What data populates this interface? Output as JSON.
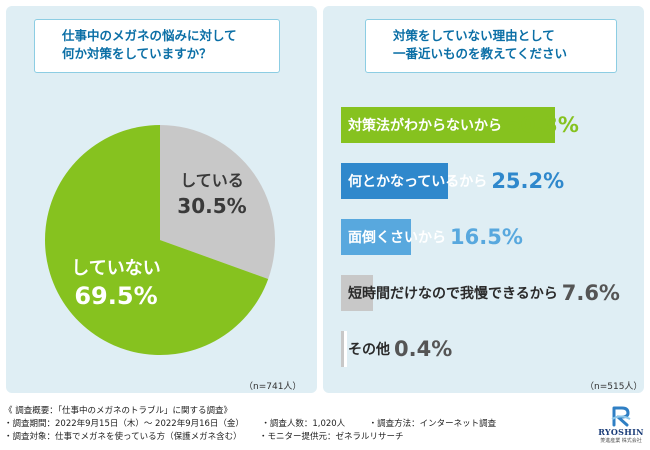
{
  "left_question": "仕事中のメガネの悩みに対して\n何か対策をしていますか？",
  "right_question": "対策をしていない理由として\n一番近いものを教えてください",
  "left_n": "（n=741人）",
  "right_n": "（n=515人）",
  "colors": {
    "green": "#86c21f",
    "gray": "#c8c8c8",
    "blue_dark": "#2f88cc",
    "blue_light": "#58a8de",
    "panel": "#dfeef4"
  },
  "chart_data": [
    {
      "type": "pie",
      "title": "",
      "slices": [
        {
          "label": "している",
          "value": 30.5,
          "value_text": "30.5%"
        },
        {
          "label": "していない",
          "value": 69.5,
          "value_text": "69.5%"
        }
      ]
    },
    {
      "type": "bar",
      "orientation": "horizontal",
      "title": "",
      "categories": [
        "対策法がわからないから",
        "何とかなっているから",
        "面倒くさいから",
        "短時間だけなので我慢できるから",
        "その他"
      ],
      "values": [
        50.3,
        25.2,
        16.5,
        7.6,
        0.4
      ],
      "value_texts": [
        "50.3%",
        "25.2%",
        "16.5%",
        "7.6%",
        "0.4%"
      ]
    }
  ],
  "footer": {
    "line1": "《 調査概要：「仕事中のメガネのトラブル」に関する調査》",
    "period": "・調査期間：2022年9月15日（木）～ 2022年9月16日（金）",
    "count": "・調査人数：1,020人",
    "method": "・調査方法：インターネット調査",
    "target": "・調査対象：仕事でメガネを使っている方（保護メガネ含む）",
    "provider": "・モニター提供元：ゼネラルリサーチ"
  },
  "logo": {
    "brand": "RYOSHIN",
    "sub": "菱進産業 株式会社",
    "icon": "ryoshin-logo-icon"
  }
}
